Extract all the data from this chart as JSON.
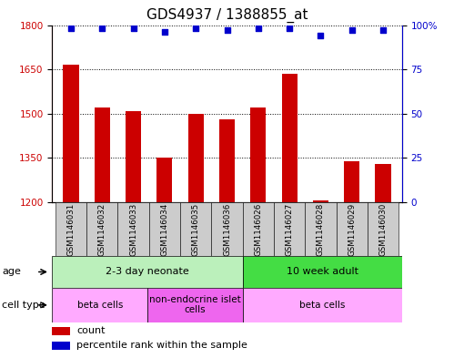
{
  "title": "GDS4937 / 1388855_at",
  "samples": [
    "GSM1146031",
    "GSM1146032",
    "GSM1146033",
    "GSM1146034",
    "GSM1146035",
    "GSM1146036",
    "GSM1146026",
    "GSM1146027",
    "GSM1146028",
    "GSM1146029",
    "GSM1146030"
  ],
  "counts": [
    1665,
    1520,
    1510,
    1350,
    1500,
    1480,
    1520,
    1635,
    1205,
    1340,
    1330
  ],
  "percentile_ranks": [
    98,
    98,
    98,
    96,
    98,
    97,
    98,
    98,
    94,
    97,
    97
  ],
  "bar_color": "#cc0000",
  "dot_color": "#0000cc",
  "ylim_left": [
    1200,
    1800
  ],
  "ylim_right": [
    0,
    100
  ],
  "yticks_left": [
    1200,
    1350,
    1500,
    1650,
    1800
  ],
  "yticks_right": [
    0,
    25,
    50,
    75,
    100
  ],
  "ytick_right_labels": [
    "0",
    "25",
    "50",
    "75",
    "100%"
  ],
  "age_groups": [
    {
      "label": "2-3 day neonate",
      "start": 0,
      "end": 6,
      "color": "#bbf0bb"
    },
    {
      "label": "10 week adult",
      "start": 6,
      "end": 11,
      "color": "#44dd44"
    }
  ],
  "cell_type_groups": [
    {
      "label": "beta cells",
      "start": 0,
      "end": 3,
      "color": "#ffaaff"
    },
    {
      "label": "non-endocrine islet\ncells",
      "start": 3,
      "end": 6,
      "color": "#ee66ee"
    },
    {
      "label": "beta cells",
      "start": 6,
      "end": 11,
      "color": "#ffaaff"
    }
  ],
  "sample_bg_color": "#cccccc",
  "title_fontsize": 11,
  "tick_fontsize": 7.5,
  "sample_label_fontsize": 6.2,
  "annotation_fontsize": 8,
  "legend_fontsize": 8,
  "bar_width": 0.5
}
